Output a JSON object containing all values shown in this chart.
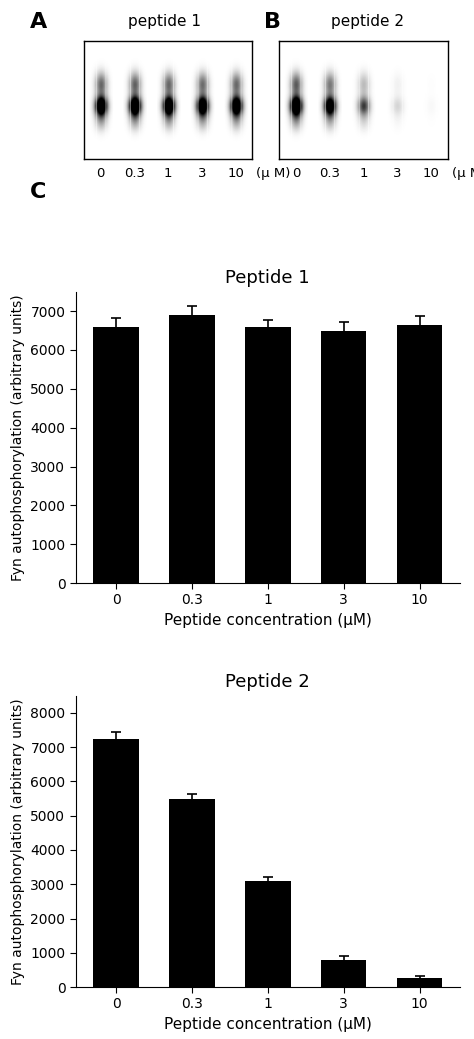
{
  "panel_A_label": "A",
  "panel_B_label": "B",
  "panel_C_label": "C",
  "panel_A_title": "peptide 1",
  "panel_B_title": "peptide 2",
  "peptide1_values": [
    6600,
    6900,
    6600,
    6500,
    6650
  ],
  "peptide1_errors": [
    220,
    220,
    160,
    220,
    220
  ],
  "peptide1_title": "Peptide 1",
  "peptide1_ylim": [
    0,
    7500
  ],
  "peptide1_yticks": [
    0,
    1000,
    2000,
    3000,
    4000,
    5000,
    6000,
    7000
  ],
  "peptide2_values": [
    7250,
    5500,
    3100,
    800,
    250
  ],
  "peptide2_errors": [
    200,
    130,
    120,
    110,
    80
  ],
  "peptide2_title": "Peptide 2",
  "peptide2_ylim": [
    0,
    8500
  ],
  "peptide2_yticks": [
    0,
    1000,
    2000,
    3000,
    4000,
    5000,
    6000,
    7000,
    8000
  ],
  "x_labels": [
    "0",
    "0.3",
    "1",
    "3",
    "10"
  ],
  "xlabel": "Peptide concentration (μM)",
  "ylabel": "Fyn autophosphorylation (arbitrary units)",
  "gel_A_intensities": [
    0.85,
    0.88,
    0.85,
    0.82,
    0.84
  ],
  "gel_B_intensities": [
    0.92,
    0.75,
    0.38,
    0.08,
    0.015
  ],
  "bar_color": "#000000",
  "bar_width": 0.6,
  "background_color": "#ffffff",
  "font_size_title": 13,
  "font_size_tick": 10,
  "font_size_label": 11
}
